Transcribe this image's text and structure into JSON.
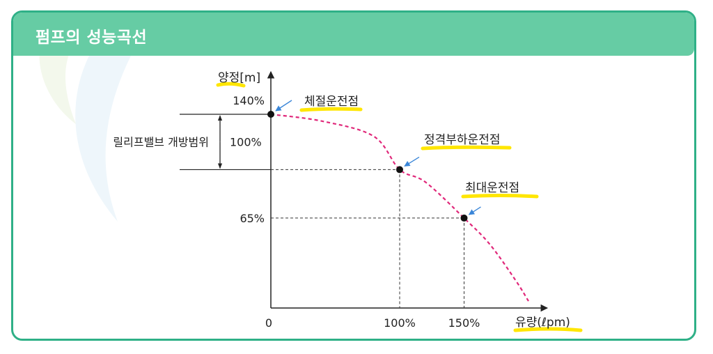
{
  "header": {
    "title": "펌프의 성능곡선"
  },
  "chart_data": {
    "type": "line",
    "title": "",
    "xlabel": "유량(ℓpm)",
    "ylabel": "양정[m]",
    "xlim": [
      0,
      215
    ],
    "ylim": [
      0,
      150
    ],
    "x_ticks": [
      {
        "value": 0,
        "label": "0"
      },
      {
        "value": 100,
        "label": "100%"
      },
      {
        "value": 150,
        "label": "150%"
      }
    ],
    "y_ticks": [
      {
        "value": 140,
        "label": "140%"
      },
      {
        "value": 65,
        "label": "65%"
      }
    ],
    "bracket": {
      "from": 140,
      "to": 100,
      "value_label": "100%",
      "label": "릴리프밸브 개방범위"
    },
    "series": [
      {
        "x": [
          0,
          40,
          80,
          100,
          120,
          150,
          170,
          190,
          200
        ],
        "y": [
          140,
          135,
          124,
          100,
          91,
          65,
          46,
          20,
          5
        ]
      }
    ],
    "points": [
      {
        "x": 0,
        "y": 140,
        "label": "체절운전점"
      },
      {
        "x": 100,
        "y": 100,
        "label": "정격부하운전점"
      },
      {
        "x": 150,
        "y": 65,
        "label": "최대운전점"
      }
    ],
    "grid": false,
    "colors": {
      "curve": "#e0287a",
      "highlight": "#ffe600",
      "accent": "#2fb087"
    }
  }
}
